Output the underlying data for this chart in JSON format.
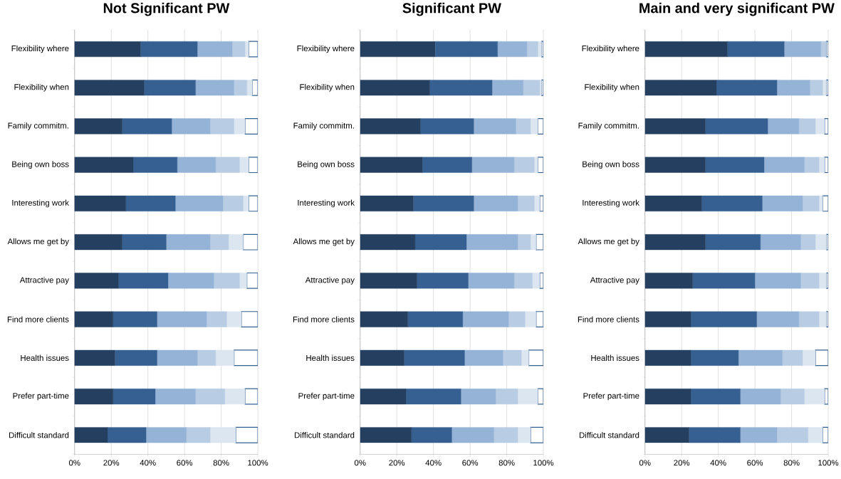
{
  "chart_data": [
    {
      "type": "bar",
      "orientation": "horizontal",
      "stacked": true,
      "grid": "x",
      "title": "Not Significant PW",
      "categories": [
        "Flexibility where",
        "Flexibility when",
        "Family commitm.",
        "Being own boss",
        "Interesting work",
        "Allows me get by",
        "Attractive pay",
        "Find more clients",
        "Health issues",
        "Prefer part-time",
        "Difficult standard"
      ],
      "xlim": [
        0,
        100
      ],
      "xticks": [
        {
          "value": 0,
          "label": "0%"
        },
        {
          "value": 20,
          "label": "20%"
        },
        {
          "value": 40,
          "label": "40%"
        },
        {
          "value": 60,
          "label": "60%"
        },
        {
          "value": 80,
          "label": "80%"
        },
        {
          "value": 100,
          "label": "100%"
        }
      ],
      "series": [
        {
          "color": "#243f60",
          "values": [
            36,
            38,
            26,
            32,
            28,
            26,
            24,
            21,
            22,
            21,
            18
          ]
        },
        {
          "color": "#366092",
          "values": [
            31,
            28,
            27,
            24,
            27,
            24,
            27,
            24,
            23,
            23,
            21
          ]
        },
        {
          "color": "#95b3d7",
          "values": [
            19,
            21,
            21,
            21,
            26,
            24,
            25,
            27,
            22,
            22,
            22
          ]
        },
        {
          "color": "#b8cce4",
          "values": [
            7,
            7,
            13,
            13,
            11,
            10,
            14,
            11,
            10,
            16,
            13
          ]
        },
        {
          "color": "#dce6f1",
          "values": [
            2,
            3,
            6,
            5,
            3,
            8,
            4,
            8,
            10,
            11,
            14
          ]
        },
        {
          "color": "#ffffff",
          "values": [
            5,
            3,
            7,
            5,
            5,
            8,
            6,
            9,
            13,
            7,
            12
          ]
        }
      ]
    },
    {
      "type": "bar",
      "orientation": "horizontal",
      "stacked": true,
      "grid": "x",
      "title": "Significant PW",
      "categories": [
        "Flexibility where",
        "Flexibility when",
        "Family commitm.",
        "Being own boss",
        "Interesting work",
        "Allows me get by",
        "Attractive pay",
        "Find more clients",
        "Health issues",
        "Prefer part-time",
        "Difficult standard"
      ],
      "xlim": [
        0,
        100
      ],
      "xticks": [
        {
          "value": 0,
          "label": "0%"
        },
        {
          "value": 20,
          "label": "20%"
        },
        {
          "value": 40,
          "label": "40%"
        },
        {
          "value": 60,
          "label": "60%"
        },
        {
          "value": 80,
          "label": "80%"
        },
        {
          "value": 100,
          "label": "100%"
        }
      ],
      "series": [
        {
          "color": "#243f60",
          "values": [
            41,
            38,
            33,
            34,
            29,
            30,
            31,
            26,
            24,
            25,
            28
          ]
        },
        {
          "color": "#366092",
          "values": [
            34,
            34,
            29,
            27,
            33,
            28,
            28,
            30,
            33,
            30,
            22
          ]
        },
        {
          "color": "#95b3d7",
          "values": [
            16,
            17,
            23,
            23,
            24,
            28,
            25,
            25,
            21,
            19,
            23
          ]
        },
        {
          "color": "#b8cce4",
          "values": [
            6,
            9,
            8,
            11,
            9,
            7,
            10,
            9,
            10,
            12,
            13
          ]
        },
        {
          "color": "#dce6f1",
          "values": [
            2,
            1,
            4,
            2,
            3,
            3,
            4,
            6,
            4,
            11,
            7
          ]
        },
        {
          "color": "#ffffff",
          "values": [
            1,
            1,
            3,
            3,
            2,
            4,
            2,
            4,
            8,
            3,
            7
          ]
        }
      ]
    },
    {
      "type": "bar",
      "orientation": "horizontal",
      "stacked": true,
      "grid": "x",
      "title": "Main and very significant PW",
      "categories": [
        "Flexibility where",
        "Flexibility when",
        "Family commitm.",
        "Being own boss",
        "Interesting work",
        "Allows me get by",
        "Attractive pay",
        "Find more clients",
        "Health issues",
        "Prefer part-time",
        "Difficult standard"
      ],
      "xlim": [
        0,
        100
      ],
      "xticks": [
        {
          "value": 0,
          "label": "0%"
        },
        {
          "value": 20,
          "label": "20%"
        },
        {
          "value": 40,
          "label": "40%"
        },
        {
          "value": 60,
          "label": "60%"
        },
        {
          "value": 80,
          "label": "80%"
        },
        {
          "value": 100,
          "label": "100%"
        }
      ],
      "series": [
        {
          "color": "#243f60",
          "values": [
            45,
            39,
            33,
            33,
            31,
            33,
            26,
            25,
            25,
            25,
            24
          ]
        },
        {
          "color": "#366092",
          "values": [
            31,
            33,
            34,
            32,
            33,
            30,
            34,
            36,
            26,
            27,
            28
          ]
        },
        {
          "color": "#95b3d7",
          "values": [
            20,
            18,
            17,
            22,
            22,
            22,
            25,
            23,
            24,
            22,
            20
          ]
        },
        {
          "color": "#b8cce4",
          "values": [
            3,
            7,
            9,
            8,
            9,
            8,
            10,
            11,
            11,
            13,
            17
          ]
        },
        {
          "color": "#dce6f1",
          "values": [
            0,
            2,
            5,
            3,
            2,
            6,
            4,
            4,
            7,
            11,
            8
          ]
        },
        {
          "color": "#ffffff",
          "values": [
            1,
            1,
            2,
            2,
            3,
            1,
            1,
            1,
            7,
            2,
            3
          ]
        }
      ]
    }
  ]
}
